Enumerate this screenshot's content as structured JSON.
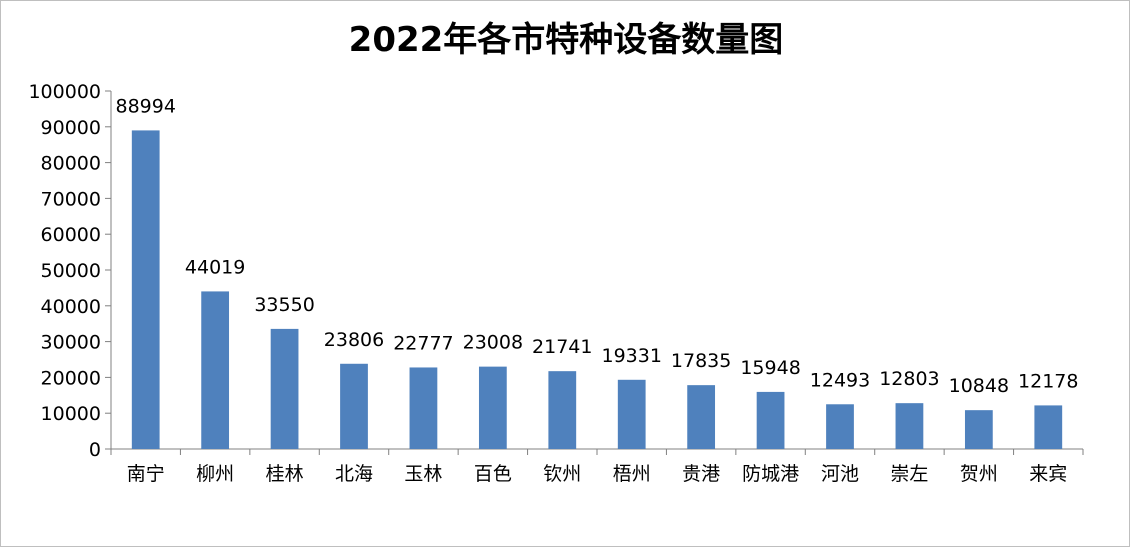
{
  "chart_data": {
    "type": "bar",
    "title": "2022年各市特种设备数量图",
    "categories": [
      "南宁",
      "柳州",
      "桂林",
      "北海",
      "玉林",
      "百色",
      "钦州",
      "梧州",
      "贵港",
      "防城港",
      "河池",
      "崇左",
      "贺州",
      "来宾"
    ],
    "values": [
      88994,
      44019,
      33550,
      23806,
      22777,
      23008,
      21741,
      19331,
      17835,
      15948,
      12493,
      12803,
      10848,
      12178
    ],
    "data_labels": [
      "88994",
      "44019",
      "33550",
      "23806",
      "22777",
      "23008",
      "21741",
      "19331",
      "17835",
      "15948",
      "12493",
      "12803",
      "10848",
      "12178"
    ],
    "ylim": [
      0,
      100000
    ],
    "yticks": [
      "0",
      "10000",
      "20000",
      "30000",
      "40000",
      "50000",
      "60000",
      "70000",
      "80000",
      "90000",
      "100000"
    ],
    "xlabel": "",
    "ylabel": "",
    "legend": "none",
    "grid": false,
    "bar_color": "#4f81bd"
  }
}
